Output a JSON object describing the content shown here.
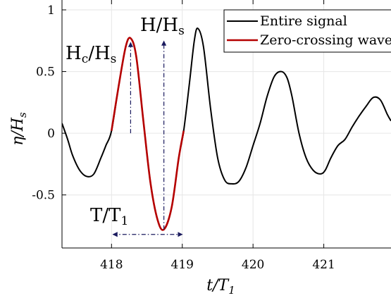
{
  "chart_data": {
    "type": "line",
    "xlabel": "t/T",
    "xlabel_sub": "1",
    "ylabel": "η/H",
    "ylabel_sub": "s",
    "xlim": [
      417.3,
      421.95
    ],
    "ylim": [
      -0.93,
      1.0
    ],
    "x_ticks": [
      418,
      419,
      420,
      421
    ],
    "x_tick_labels": [
      "418",
      "419",
      "420",
      "421"
    ],
    "y_ticks": [
      1,
      0.5,
      0,
      -0.5
    ],
    "y_tick_labels": [
      "1",
      "0.5",
      "0",
      "-0.5"
    ],
    "grid": true,
    "legend_position": "top-right",
    "series": [
      {
        "name": "Entire signal",
        "color": "#000000",
        "x": [
          417.3,
          417.38,
          417.45,
          417.55,
          417.65,
          417.75,
          417.85,
          417.92,
          418.0,
          418.1,
          418.2,
          418.27,
          418.35,
          418.45,
          418.55,
          418.65,
          418.74,
          418.85,
          418.95,
          419.02,
          419.1,
          419.17,
          419.22,
          419.3,
          419.4,
          419.5,
          419.6,
          419.7,
          419.8,
          419.9,
          420.0,
          420.1,
          420.2,
          420.3,
          420.4,
          420.48,
          420.55,
          420.65,
          420.75,
          420.85,
          420.95,
          421.02,
          421.1,
          421.2,
          421.3,
          421.4,
          421.5,
          421.6,
          421.7,
          421.8,
          421.9,
          421.95
        ],
        "y": [
          0.08,
          -0.05,
          -0.18,
          -0.3,
          -0.35,
          -0.33,
          -0.2,
          -0.1,
          0.02,
          0.38,
          0.7,
          0.77,
          0.62,
          0.1,
          -0.4,
          -0.7,
          -0.78,
          -0.6,
          -0.2,
          0.02,
          0.4,
          0.75,
          0.85,
          0.7,
          0.2,
          -0.2,
          -0.38,
          -0.41,
          -0.39,
          -0.28,
          -0.1,
          0.08,
          0.3,
          0.46,
          0.5,
          0.45,
          0.3,
          0.0,
          -0.2,
          -0.3,
          -0.33,
          -0.3,
          -0.2,
          -0.1,
          -0.05,
          0.05,
          0.14,
          0.22,
          0.29,
          0.27,
          0.15,
          0.1
        ]
      },
      {
        "name": "Zero-crossing wave",
        "color": "#b50000",
        "x": [
          418.0,
          418.1,
          418.2,
          418.27,
          418.35,
          418.45,
          418.55,
          418.65,
          418.74,
          418.85,
          418.95,
          419.02
        ],
        "y": [
          0.02,
          0.38,
          0.7,
          0.77,
          0.62,
          0.1,
          -0.4,
          -0.7,
          -0.78,
          -0.6,
          -0.2,
          0.02
        ]
      }
    ],
    "annotations": {
      "crest_label": "H",
      "crest_sub": "c",
      "crest_den": "/H",
      "crest_den_sub": "s",
      "height_label": "H/H",
      "height_sub": "s",
      "period_label": "T/T",
      "period_sub": "1",
      "crest_line": {
        "x": 418.27,
        "y0": 0.0,
        "y1": 0.77
      },
      "height_line": {
        "x": 418.74,
        "y0": -0.78,
        "y1": 0.77
      },
      "period_line": {
        "y": -0.82,
        "x0": 418.0,
        "x1": 419.02
      },
      "arrow_color": "#1a1a5e"
    }
  }
}
